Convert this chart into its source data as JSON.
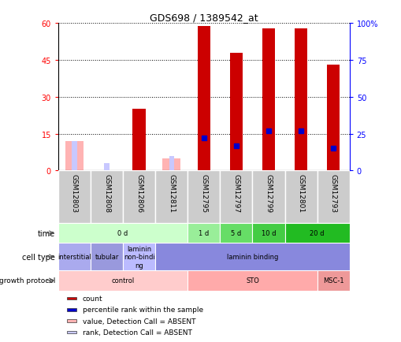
{
  "title": "GDS698 / 1389542_at",
  "samples": [
    "GSM12803",
    "GSM12808",
    "GSM12806",
    "GSM12811",
    "GSM12795",
    "GSM12797",
    "GSM12799",
    "GSM12801",
    "GSM12793"
  ],
  "count_values": [
    null,
    null,
    25,
    null,
    59,
    48,
    58,
    58,
    43
  ],
  "percentile_values": [
    null,
    null,
    null,
    null,
    22,
    17,
    27,
    27,
    15
  ],
  "absent_count_values": [
    12,
    null,
    null,
    5,
    null,
    null,
    null,
    null,
    null
  ],
  "absent_rank_values": [
    12,
    3,
    null,
    6,
    null,
    null,
    null,
    null,
    null
  ],
  "ylim_left": [
    0,
    60
  ],
  "ylim_right": [
    0,
    100
  ],
  "yticks_left": [
    0,
    15,
    30,
    45,
    60
  ],
  "yticks_right": [
    0,
    25,
    50,
    75,
    100
  ],
  "ytick_right_labels": [
    "0",
    "25",
    "50",
    "75",
    "100%"
  ],
  "bar_color": "#cc0000",
  "percentile_color": "#0000cc",
  "absent_count_color": "#ffb3b3",
  "absent_rank_color": "#c8c8ff",
  "plot_bg": "#ffffff",
  "sample_bg": "#cccccc",
  "time_groups": [
    {
      "label": "0 d",
      "start": 0,
      "end": 4,
      "color": "#ccffcc"
    },
    {
      "label": "1 d",
      "start": 4,
      "end": 5,
      "color": "#99ee99"
    },
    {
      "label": "5 d",
      "start": 5,
      "end": 6,
      "color": "#66dd66"
    },
    {
      "label": "10 d",
      "start": 6,
      "end": 7,
      "color": "#44cc44"
    },
    {
      "label": "20 d",
      "start": 7,
      "end": 9,
      "color": "#22bb22"
    }
  ],
  "cell_type_groups": [
    {
      "label": "interstitial",
      "start": 0,
      "end": 1,
      "color": "#aaaaee"
    },
    {
      "label": "tubular",
      "start": 1,
      "end": 2,
      "color": "#9999dd"
    },
    {
      "label": "laminin\nnon-bindi\nng",
      "start": 2,
      "end": 3,
      "color": "#bbbbff"
    },
    {
      "label": "laminin binding",
      "start": 3,
      "end": 9,
      "color": "#8888dd"
    }
  ],
  "growth_groups": [
    {
      "label": "control",
      "start": 0,
      "end": 4,
      "color": "#ffcccc"
    },
    {
      "label": "STO",
      "start": 4,
      "end": 8,
      "color": "#ffaaaa"
    },
    {
      "label": "MSC-1",
      "start": 8,
      "end": 9,
      "color": "#ee9999"
    }
  ],
  "legend_items": [
    {
      "color": "#cc0000",
      "label": "count"
    },
    {
      "color": "#0000cc",
      "label": "percentile rank within the sample"
    },
    {
      "color": "#ffb3b3",
      "label": "value, Detection Call = ABSENT"
    },
    {
      "color": "#c8c8ff",
      "label": "rank, Detection Call = ABSENT"
    }
  ]
}
